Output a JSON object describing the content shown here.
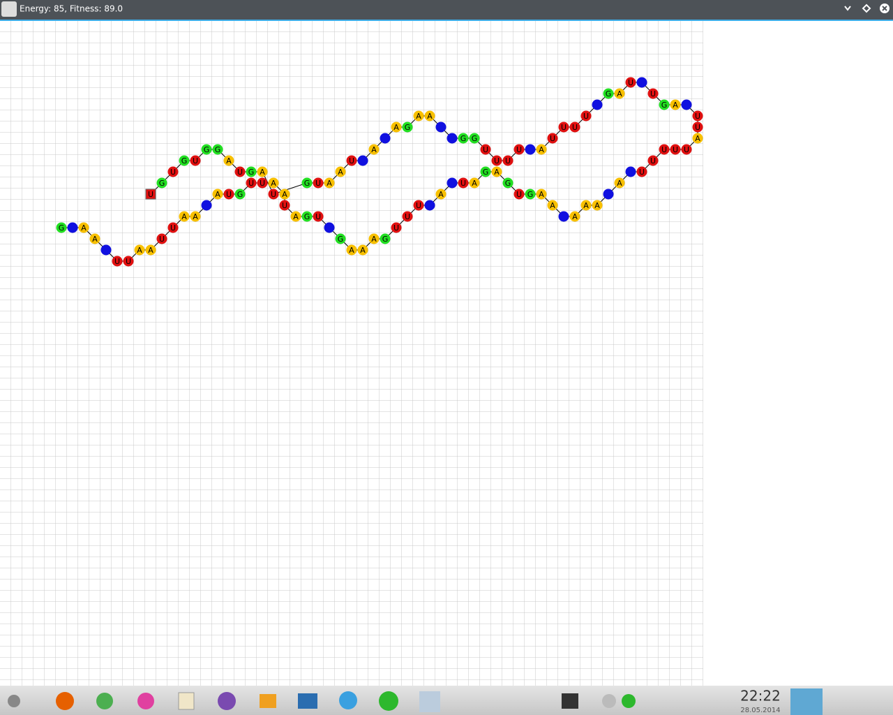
{
  "window": {
    "title": "Energy: 85, Fitness: 89.0"
  },
  "lattice": {
    "colors": {
      "A": "#f8c000",
      "U": "#e01010",
      "G": "#22e022"
    },
    "blank_color": "#1010e0",
    "nodes": [
      [
        5,
        18,
        "G"
      ],
      [
        6,
        18,
        null
      ],
      [
        7,
        18,
        "A"
      ],
      [
        8,
        19,
        "A"
      ],
      [
        9,
        20,
        null
      ],
      [
        10,
        21,
        "U"
      ],
      [
        11,
        21,
        "U"
      ],
      [
        12,
        20,
        "A"
      ],
      [
        13,
        20,
        "A"
      ],
      [
        14,
        19,
        "U"
      ],
      [
        15,
        18,
        "U"
      ],
      [
        16,
        17,
        "A"
      ],
      [
        17,
        17,
        "A"
      ],
      [
        18,
        16,
        null
      ],
      [
        19,
        15,
        "A"
      ],
      [
        20,
        15,
        "U"
      ],
      [
        21,
        15,
        "G"
      ],
      [
        22,
        14,
        "U"
      ],
      [
        23,
        14,
        "U"
      ],
      [
        24,
        14,
        "A"
      ],
      [
        25,
        15,
        "A"
      ],
      [
        25,
        16,
        "U"
      ],
      [
        26,
        17,
        "A"
      ],
      [
        27,
        17,
        "G"
      ],
      [
        28,
        17,
        "U"
      ],
      [
        29,
        18,
        null
      ],
      [
        30,
        19,
        "G"
      ],
      [
        31,
        20,
        "A"
      ],
      [
        32,
        20,
        "A"
      ],
      [
        33,
        19,
        "A"
      ],
      [
        34,
        19,
        "G"
      ],
      [
        35,
        18,
        "U"
      ],
      [
        36,
        17,
        "U"
      ],
      [
        37,
        16,
        "U"
      ],
      [
        38,
        16,
        null
      ],
      [
        39,
        15,
        "A"
      ],
      [
        40,
        14,
        null
      ],
      [
        41,
        14,
        "U"
      ],
      [
        42,
        14,
        "A"
      ],
      [
        43,
        13,
        "G"
      ],
      [
        44,
        13,
        "A"
      ],
      [
        45,
        14,
        "G"
      ],
      [
        46,
        15,
        "U"
      ],
      [
        47,
        15,
        "G"
      ],
      [
        48,
        15,
        "A"
      ],
      [
        49,
        16,
        "A"
      ],
      [
        50,
        17,
        null
      ],
      [
        51,
        17,
        "A"
      ],
      [
        52,
        16,
        "A"
      ],
      [
        53,
        16,
        "A"
      ],
      [
        54,
        15,
        null
      ],
      [
        55,
        14,
        "A"
      ],
      [
        56,
        13,
        null
      ],
      [
        57,
        13,
        "U"
      ],
      [
        58,
        12,
        "U"
      ],
      [
        59,
        11,
        "U"
      ],
      [
        60,
        11,
        "U"
      ],
      [
        61,
        11,
        "U"
      ],
      [
        62,
        10,
        "A"
      ],
      [
        62,
        9,
        "U"
      ],
      [
        62,
        8,
        "U"
      ],
      [
        61,
        7,
        null
      ],
      [
        60,
        7,
        "A"
      ],
      [
        59,
        7,
        "G"
      ],
      [
        58,
        6,
        "U"
      ],
      [
        57,
        5,
        null
      ],
      [
        56,
        5,
        "U"
      ],
      [
        55,
        6,
        "A"
      ],
      [
        54,
        6,
        "G"
      ],
      [
        53,
        7,
        null
      ],
      [
        52,
        8,
        "U"
      ],
      [
        51,
        9,
        "U"
      ],
      [
        50,
        9,
        "U"
      ],
      [
        49,
        10,
        "U"
      ],
      [
        48,
        11,
        "A"
      ],
      [
        47,
        11,
        null
      ],
      [
        46,
        11,
        "U"
      ],
      [
        45,
        12,
        "U"
      ],
      [
        44,
        12,
        "U"
      ],
      [
        43,
        11,
        "U"
      ],
      [
        42,
        10,
        "G"
      ],
      [
        41,
        10,
        "G"
      ],
      [
        40,
        10,
        null
      ],
      [
        39,
        9,
        null
      ],
      [
        38,
        8,
        "A"
      ],
      [
        37,
        8,
        "A"
      ],
      [
        36,
        9,
        "G"
      ],
      [
        35,
        9,
        "A"
      ],
      [
        34,
        10,
        null
      ],
      [
        33,
        11,
        "A"
      ],
      [
        32,
        12,
        null
      ],
      [
        31,
        12,
        "U"
      ],
      [
        30,
        13,
        "A"
      ],
      [
        29,
        14,
        "A"
      ],
      [
        28,
        14,
        "U"
      ],
      [
        27,
        14,
        "G"
      ],
      [
        24,
        15,
        "U"
      ],
      [
        23,
        13,
        "A"
      ],
      [
        22,
        13,
        "G"
      ],
      [
        21,
        13,
        "U"
      ],
      [
        20,
        12,
        "A"
      ],
      [
        19,
        11,
        "G"
      ],
      [
        18,
        11,
        "G"
      ],
      [
        17,
        12,
        "U"
      ],
      [
        16,
        12,
        "G"
      ],
      [
        15,
        13,
        "U"
      ],
      [
        14,
        14,
        "G"
      ],
      [
        13,
        15,
        "U"
      ]
    ]
  },
  "taskbar": {
    "time": "22:22",
    "date": "28.05.2014"
  }
}
